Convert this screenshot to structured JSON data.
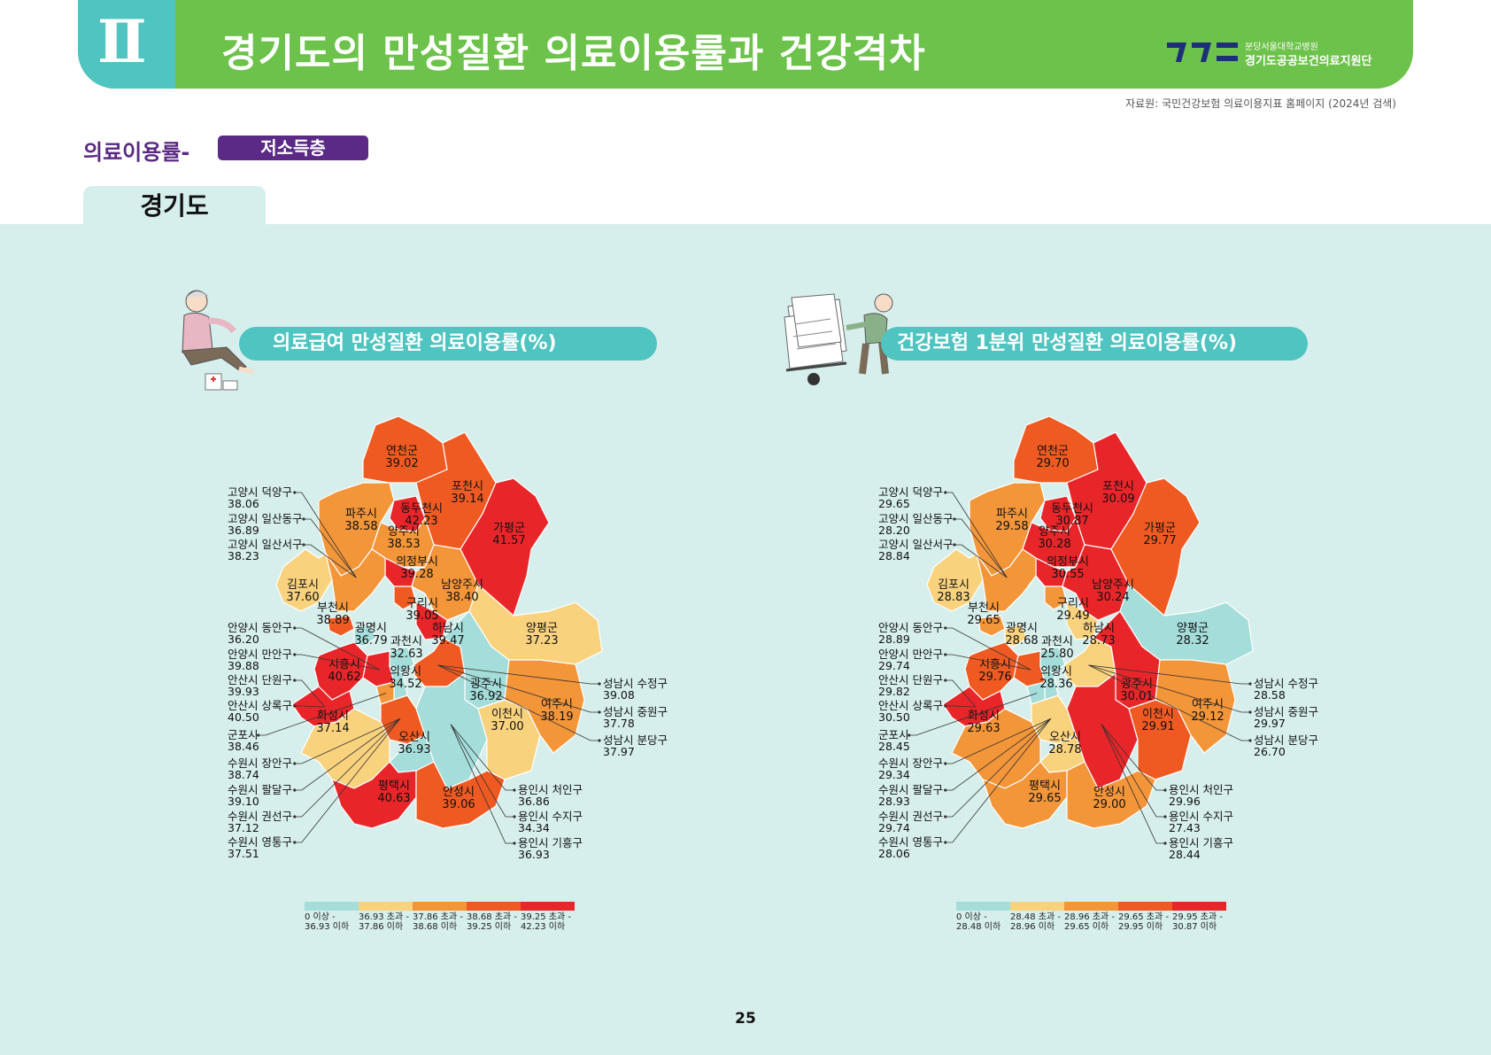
{
  "header": {
    "section_numeral": "Ⅱ",
    "title": "경기도의 만성질환 의료이용률과 건강격차",
    "logo_line1": "분당서울대학교병원",
    "logo_line2": "경기도공공보건의료지원단"
  },
  "source": "자료원: 국민건강보험 의료이용지표 홈페이지 (2024년 검색)",
  "section": {
    "label": "의료이용률-",
    "badge": "저소득층"
  },
  "region_tab": "경기도",
  "page_number": "25",
  "maps": [
    {
      "title": "의료급여 만성질환 의료이용률(%)",
      "legend": [
        {
          "color": "#a4ddd9",
          "line1": "0 이상 -",
          "line2": "36.93 이하"
        },
        {
          "color": "#f9d27e",
          "line1": "36.93 초과 -",
          "line2": "37.86 이하"
        },
        {
          "color": "#f39539",
          "line1": "37.86 초과 -",
          "line2": "38.68 이하"
        },
        {
          "color": "#ef5a22",
          "line1": "38.68 초과 -",
          "line2": "39.25 이하"
        },
        {
          "color": "#e8262a",
          "line1": "39.25 초과 -",
          "line2": "42.23 이하"
        }
      ],
      "regions": [
        {
          "name": "연천군",
          "value": "39.02"
        },
        {
          "name": "포천시",
          "value": "39.14"
        },
        {
          "name": "동두천시",
          "value": "42.23"
        },
        {
          "name": "파주시",
          "value": "38.58"
        },
        {
          "name": "양주시",
          "value": "38.53"
        },
        {
          "name": "가평군",
          "value": "41.57"
        },
        {
          "name": "의정부시",
          "value": "39.28"
        },
        {
          "name": "김포시",
          "value": "37.60"
        },
        {
          "name": "남양주시",
          "value": "38.40"
        },
        {
          "name": "구리시",
          "value": "39.05"
        },
        {
          "name": "부천시",
          "value": "38.89"
        },
        {
          "name": "광명시",
          "value": "36.79"
        },
        {
          "name": "하남시",
          "value": "39.47"
        },
        {
          "name": "과천시",
          "value": "32.63"
        },
        {
          "name": "양평군",
          "value": "37.23"
        },
        {
          "name": "시흥시",
          "value": "40.62"
        },
        {
          "name": "의왕시",
          "value": "34.52"
        },
        {
          "name": "광주시",
          "value": "36.92"
        },
        {
          "name": "화성시",
          "value": "37.14"
        },
        {
          "name": "이천시",
          "value": "37.00"
        },
        {
          "name": "여주시",
          "value": "38.19"
        },
        {
          "name": "오산시",
          "value": "36.93"
        },
        {
          "name": "평택시",
          "value": "40.63"
        },
        {
          "name": "안성시",
          "value": "39.06"
        }
      ],
      "callouts_left": [
        {
          "name": "고양시 덕양구",
          "value": "38.06"
        },
        {
          "name": "고양시 일산동구",
          "value": "36.89"
        },
        {
          "name": "고양시 일산서구",
          "value": "38.23"
        },
        {
          "name": "안양시 동안구",
          "value": "36.20"
        },
        {
          "name": "안양시 만안구",
          "value": "39.88"
        },
        {
          "name": "안산시 단원구",
          "value": "39.93"
        },
        {
          "name": "안산시 상록구",
          "value": "40.50"
        },
        {
          "name": "군포시",
          "value": "38.46"
        },
        {
          "name": "수원시 장안구",
          "value": "38.74"
        },
        {
          "name": "수원시 팔달구",
          "value": "39.10"
        },
        {
          "name": "수원시 권선구",
          "value": "37.12"
        },
        {
          "name": "수원시 영통구",
          "value": "37.51"
        }
      ],
      "callouts_right": [
        {
          "name": "성남시 수정구",
          "value": "39.08"
        },
        {
          "name": "성남시 중원구",
          "value": "37.78"
        },
        {
          "name": "성남시 분당구",
          "value": "37.97"
        },
        {
          "name": "용인시 처인구",
          "value": "36.86"
        },
        {
          "name": "용인시 수지구",
          "value": "34.34"
        },
        {
          "name": "용인시 기흥구",
          "value": "36.93"
        }
      ]
    },
    {
      "title": "건강보험 1분위 만성질환 의료이용률(%)",
      "legend": [
        {
          "color": "#a4ddd9",
          "line1": "0 이상 -",
          "line2": "28.48 이하"
        },
        {
          "color": "#f9d27e",
          "line1": "28.48 초과 -",
          "line2": "28.96 이하"
        },
        {
          "color": "#f39539",
          "line1": "28.96 초과 -",
          "line2": "29.65 이하"
        },
        {
          "color": "#ef5a22",
          "line1": "29.65 초과 -",
          "line2": "29.95 이하"
        },
        {
          "color": "#e8262a",
          "line1": "29.95 초과 -",
          "line2": "30.87 이하"
        }
      ],
      "regions": [
        {
          "name": "연천군",
          "value": "29.70"
        },
        {
          "name": "포천시",
          "value": "30.09"
        },
        {
          "name": "동두천시",
          "value": "30.87"
        },
        {
          "name": "파주시",
          "value": "29.58"
        },
        {
          "name": "양주시",
          "value": "30.28"
        },
        {
          "name": "가평군",
          "value": "29.77"
        },
        {
          "name": "의정부시",
          "value": "30.55"
        },
        {
          "name": "김포시",
          "value": "28.83"
        },
        {
          "name": "남양주시",
          "value": "30.24"
        },
        {
          "name": "구리시",
          "value": "29.49"
        },
        {
          "name": "부천시",
          "value": "29.65"
        },
        {
          "name": "광명시",
          "value": "28.68"
        },
        {
          "name": "하남시",
          "value": "28.73"
        },
        {
          "name": "과천시",
          "value": "25.80"
        },
        {
          "name": "양평군",
          "value": "28.32"
        },
        {
          "name": "시흥시",
          "value": "29.76"
        },
        {
          "name": "의왕시",
          "value": "28.36"
        },
        {
          "name": "광주시",
          "value": "30.01"
        },
        {
          "name": "화성시",
          "value": "29.63"
        },
        {
          "name": "이천시",
          "value": "29.91"
        },
        {
          "name": "여주시",
          "value": "29.12"
        },
        {
          "name": "오산시",
          "value": "28.78"
        },
        {
          "name": "평택시",
          "value": "29.65"
        },
        {
          "name": "안성시",
          "value": "29.00"
        }
      ],
      "callouts_left": [
        {
          "name": "고양시 덕양구",
          "value": "29.65"
        },
        {
          "name": "고양시 일산동구",
          "value": "28.20"
        },
        {
          "name": "고양시 일산서구",
          "value": "28.84"
        },
        {
          "name": "안양시 동안구",
          "value": "28.89"
        },
        {
          "name": "안양시 만안구",
          "value": "29.74"
        },
        {
          "name": "안산시 단원구",
          "value": "29.82"
        },
        {
          "name": "안산시 상록구",
          "value": "30.50"
        },
        {
          "name": "군포시",
          "value": "28.45"
        },
        {
          "name": "수원시 장안구",
          "value": "29.34"
        },
        {
          "name": "수원시 팔달구",
          "value": "28.93"
        },
        {
          "name": "수원시 권선구",
          "value": "29.74"
        },
        {
          "name": "수원시 영통구",
          "value": "28.06"
        }
      ],
      "callouts_right": [
        {
          "name": "성남시 수정구",
          "value": "28.58"
        },
        {
          "name": "성남시 중원구",
          "value": "29.97"
        },
        {
          "name": "성남시 분당구",
          "value": "26.70"
        },
        {
          "name": "용인시 처인구",
          "value": "29.96"
        },
        {
          "name": "용인시 수지구",
          "value": "27.43"
        },
        {
          "name": "용인시 기흥구",
          "value": "28.44"
        }
      ]
    }
  ]
}
